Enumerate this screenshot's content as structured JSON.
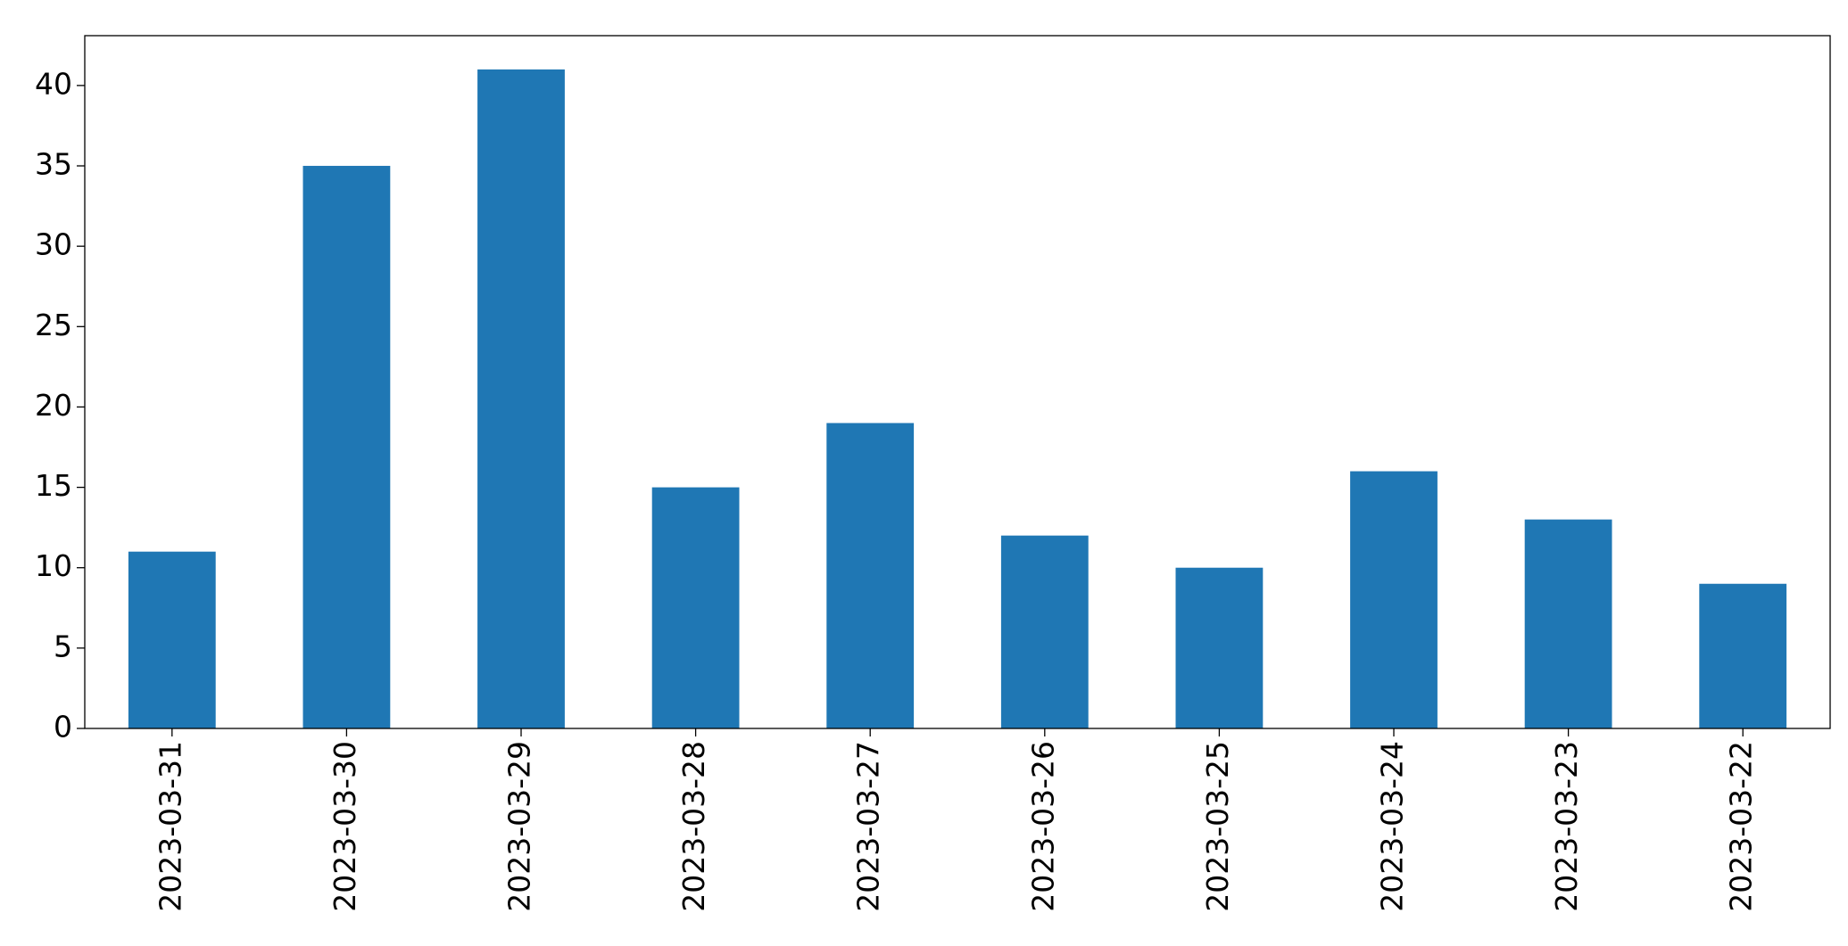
{
  "chart_data": {
    "type": "bar",
    "categories": [
      "2023-03-31",
      "2023-03-30",
      "2023-03-29",
      "2023-03-28",
      "2023-03-27",
      "2023-03-26",
      "2023-03-25",
      "2023-03-24",
      "2023-03-23",
      "2023-03-22"
    ],
    "values": [
      11,
      35,
      41,
      15,
      19,
      12,
      10,
      16,
      13,
      9
    ],
    "color": "#1f77b4",
    "ylim": [
      0,
      43.1
    ],
    "yticks": [
      0,
      5,
      10,
      15,
      20,
      25,
      30,
      35,
      40
    ],
    "grid": false
  }
}
